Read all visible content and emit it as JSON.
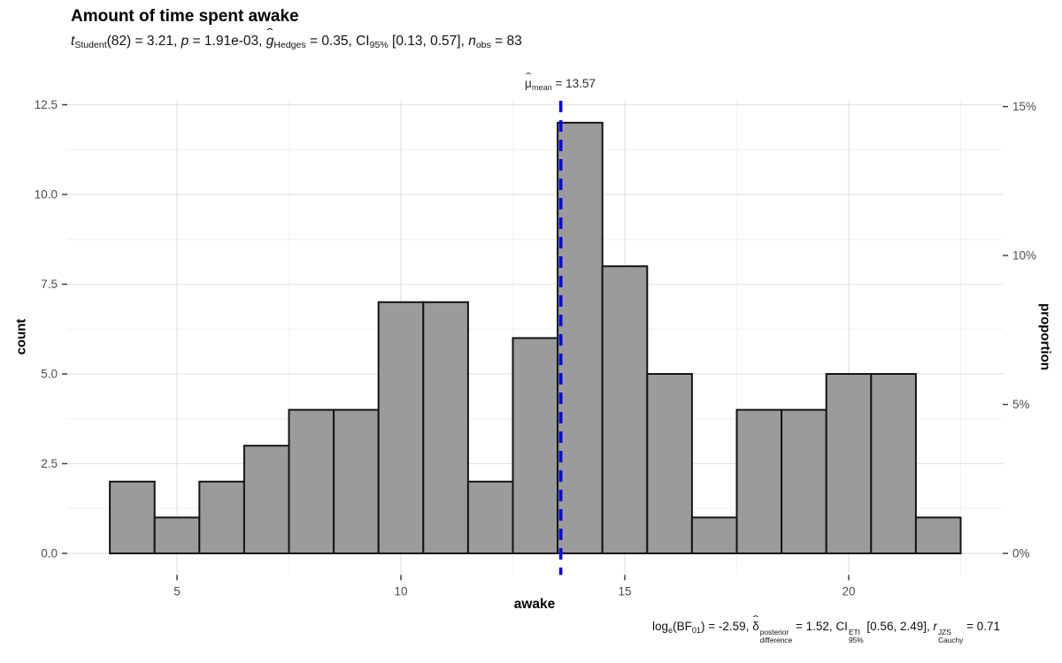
{
  "title": "Amount of time spent awake",
  "subtitle_runs": [
    {
      "text": "t",
      "italic": true
    },
    {
      "text": "Student",
      "sub": true
    },
    {
      "text": "(82) = 3.21, "
    },
    {
      "text": "p",
      "italic": true
    },
    {
      "text": " = 1.91e-03, "
    },
    {
      "text": "g",
      "italic": true,
      "hat": true
    },
    {
      "text": "Hedges",
      "sub": true
    },
    {
      "text": " = 0.35, CI"
    },
    {
      "text": "95%",
      "sub": true
    },
    {
      "text": " [0.13, 0.57], "
    },
    {
      "text": "n",
      "italic": true
    },
    {
      "text": "obs",
      "sub": true
    },
    {
      "text": " = 83"
    }
  ],
  "annotation_runs": [
    {
      "text": "μ",
      "hat": true
    },
    {
      "text": "mean",
      "sub": true
    },
    {
      "text": " = 13.57"
    }
  ],
  "caption_runs": [
    {
      "text": "log"
    },
    {
      "text": "e",
      "sub": true
    },
    {
      "text": "(BF"
    },
    {
      "text": "01",
      "sub": true
    },
    {
      "text": ") = -2.59, "
    },
    {
      "text": "δ",
      "hat": true,
      "stack": {
        "sup": "posterior",
        "sub": "difference"
      }
    },
    {
      "text": " = 1.52, "
    },
    {
      "text": "CI",
      "stack": {
        "sup": "ETI",
        "sub": "95%"
      }
    },
    {
      "text": " [0.56, 2.49], "
    },
    {
      "text": "r",
      "italic": true,
      "stack": {
        "sup": "JZS",
        "sub": "Cauchy"
      }
    },
    {
      "text": " = 0.71"
    }
  ],
  "chart_data": {
    "type": "bar",
    "subtype": "histogram",
    "title": "Amount of time spent awake",
    "xlabel": "awake",
    "ylabel_left": "count",
    "ylabel_right": "proportion",
    "n_obs": 83,
    "bin_start": 3.5,
    "bin_width": 1,
    "categories": [
      4,
      5,
      6,
      7,
      8,
      9,
      10,
      11,
      12,
      13,
      14,
      15,
      16,
      17,
      18,
      19,
      20,
      21,
      22
    ],
    "values": [
      2,
      1,
      2,
      3,
      4,
      4,
      7,
      7,
      2,
      6,
      12,
      8,
      5,
      1,
      4,
      4,
      5,
      5,
      1
    ],
    "mean": 13.57,
    "mean_label_value": "13.57",
    "x_ticks": [
      5,
      10,
      15,
      20
    ],
    "x_minor": [
      7.5,
      12.5,
      17.5,
      22.5
    ],
    "y_ticks_left_labels": [
      "0.0",
      "2.5",
      "5.0",
      "7.5",
      "10.0",
      "12.5"
    ],
    "y_ticks_left_values": [
      0,
      2.5,
      5,
      7.5,
      10,
      12.5
    ],
    "y_minor_values": [
      1.25,
      3.75,
      6.25,
      8.75,
      11.25
    ],
    "y_ticks_right_labels": [
      "0%",
      "5%",
      "10%",
      "15%"
    ],
    "y_ticks_right_values": [
      0,
      0.05,
      0.1,
      0.15
    ],
    "xlim": [
      2.55,
      23.45
    ],
    "ylim": [
      -0.6,
      12.6
    ],
    "grid": true,
    "legend": "none",
    "colors": {
      "bar_fill": "#9B9B9B",
      "bar_stroke": "#141414",
      "mean_line": "#0000EE",
      "grid_major": "#E4E4E4",
      "grid_minor": "#F2F2F2",
      "tick": "#333333",
      "tick_label": "#4D4D4D"
    }
  }
}
